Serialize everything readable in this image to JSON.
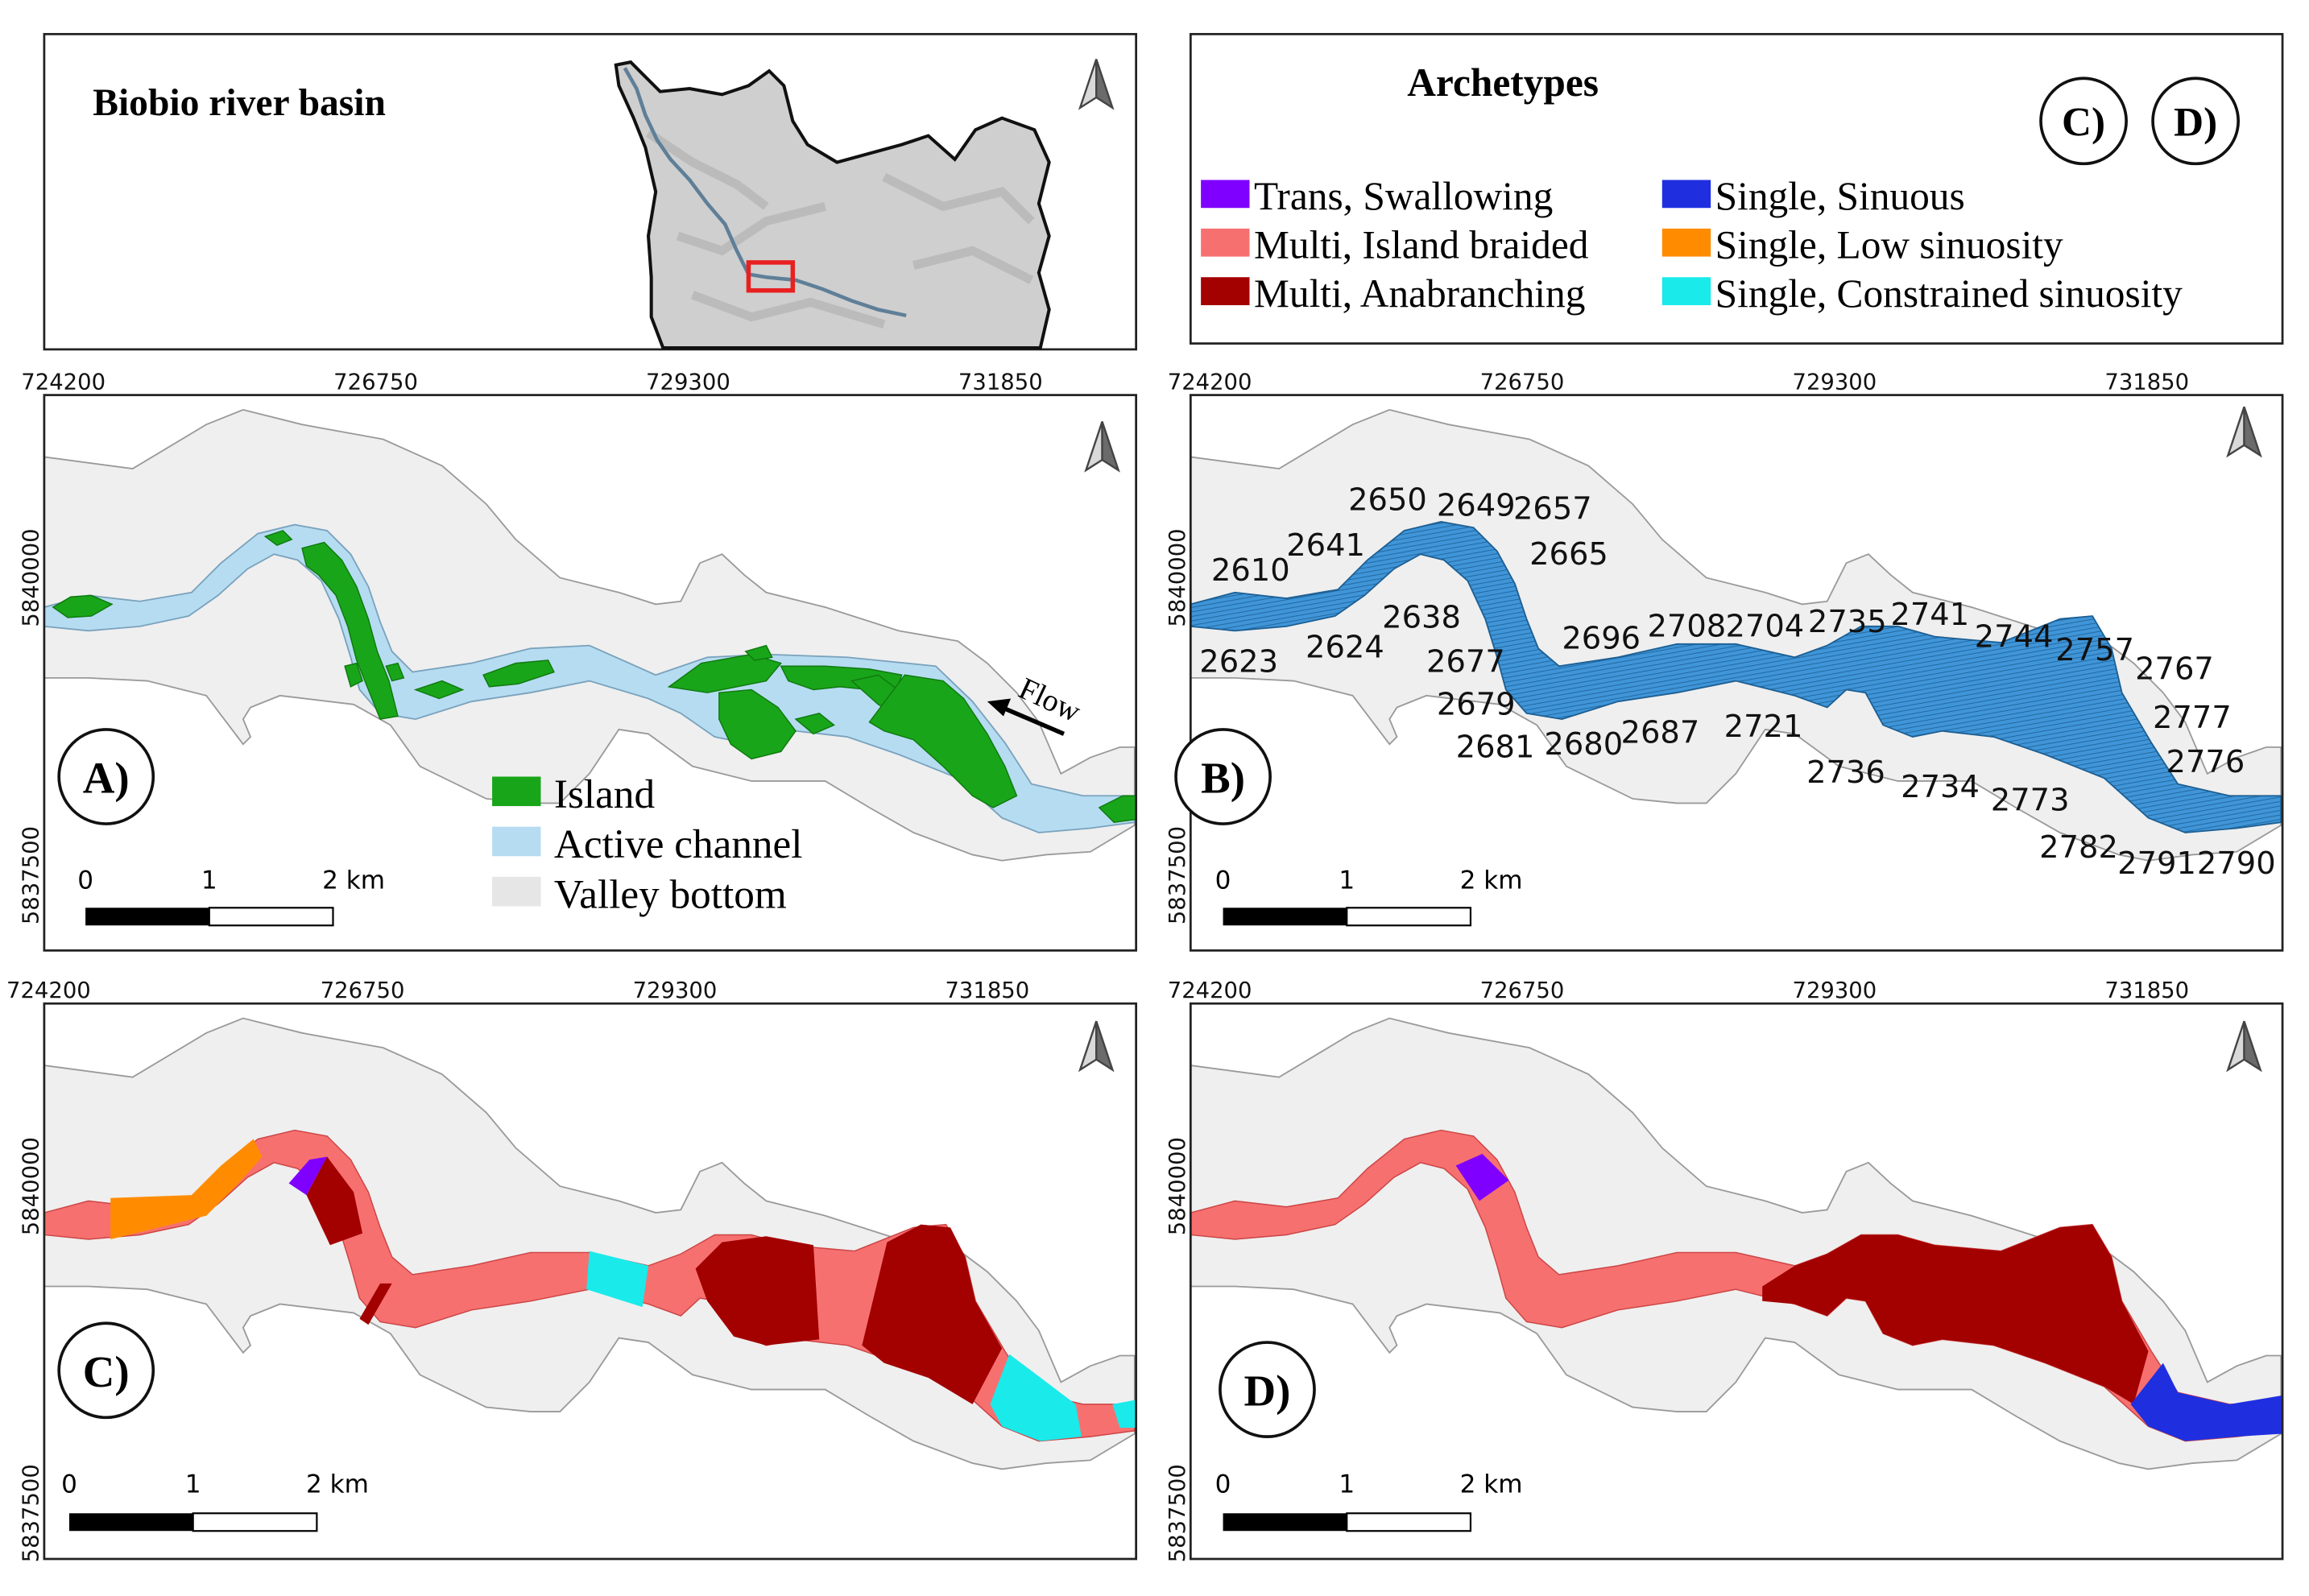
{
  "overview": {
    "title": "Biobio river basin"
  },
  "legend": {
    "title": "Archetypes",
    "panel_refs": [
      "C)",
      "D)"
    ],
    "items": [
      {
        "label": "Trans, Swallowing",
        "color": "#7f00ff"
      },
      {
        "label": "Multi, Island braided",
        "color": "#f77070"
      },
      {
        "label": "Multi, Anabranching",
        "color": "#a30000"
      },
      {
        "label": "Single, Sinuous",
        "color": "#1f2fe0"
      },
      {
        "label": "Single, Low sinuosity",
        "color": "#ff8c00"
      },
      {
        "label": "Single, Constrained sinuosity",
        "color": "#1aeaea"
      }
    ]
  },
  "axis": {
    "x_ticks": [
      "724200",
      "726750",
      "729300",
      "731850"
    ],
    "y_ticks": [
      "5840000",
      "5837500"
    ]
  },
  "scalebar": {
    "labels": [
      "0",
      "1",
      "2 km"
    ]
  },
  "panel_a": {
    "label": "A)",
    "flow_label": "Flow",
    "legend": [
      {
        "label": "Island",
        "color": "#19a519"
      },
      {
        "label": "Active channel",
        "color": "#b6dcf2"
      },
      {
        "label": "Valley bottom",
        "color": "#efefef"
      }
    ]
  },
  "panel_b": {
    "label": "B)",
    "segment_ids": [
      "2650",
      "2649",
      "2657",
      "2665",
      "2641",
      "2610",
      "2638",
      "2623",
      "2624",
      "2677",
      "2696",
      "2708",
      "2704",
      "2735",
      "2741",
      "2744",
      "2757",
      "2767",
      "2679",
      "2681",
      "2680",
      "2687",
      "2721",
      "2777",
      "2776",
      "2736",
      "2734",
      "2773",
      "2782",
      "2791",
      "2790"
    ]
  },
  "panel_c": {
    "label": "C)",
    "segment_sequence": [
      "Multi, Island braided",
      "Single, Low sinuosity",
      "Multi, Island braided",
      "Trans, Swallowing",
      "Multi, Anabranching",
      "Multi, Island braided",
      "Multi, Anabranching",
      "Multi, Island braided",
      "Single, Constrained sinuosity",
      "Multi, Island braided",
      "Multi, Anabranching",
      "Multi, Island braided",
      "Multi, Anabranching",
      "Multi, Island braided",
      "Single, Constrained sinuosity",
      "Multi, Island braided",
      "Single, Constrained sinuosity"
    ]
  },
  "panel_d": {
    "label": "D)",
    "segment_sequence": [
      "Multi, Island braided",
      "Trans, Swallowing",
      "Multi, Island braided",
      "Multi, Anabranching",
      "Single, Sinuous"
    ]
  }
}
